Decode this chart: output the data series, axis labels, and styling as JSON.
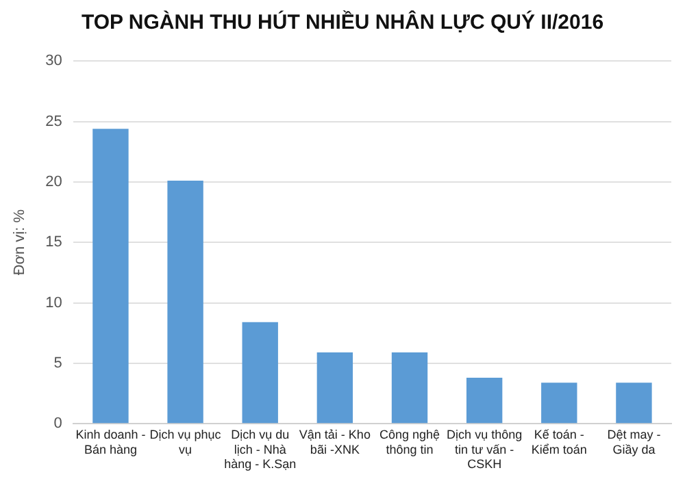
{
  "chart_data": {
    "type": "bar",
    "title": "TOP NGÀNH THU HÚT NHIỀU NHÂN LỰC QUÝ II/2016",
    "ylabel": "Đơn vị: %",
    "categories": [
      "Kinh doanh - Bán hàng",
      "Dịch vụ phục vụ",
      "Dịch vụ du lịch - Nhà hàng - K.Sạn",
      "Vận tải - Kho bãi -XNK",
      "Công nghệ thông tin",
      "Dịch vụ thông tin tư vấn - CSKH",
      "Kế toán - Kiểm toán",
      "Dệt may - Giầy da"
    ],
    "values": [
      24.4,
      20.1,
      8.4,
      5.9,
      5.9,
      3.8,
      3.4,
      3.4
    ],
    "color": "#5b9bd5",
    "ylim": [
      0,
      30
    ],
    "yticks": [
      0,
      5,
      10,
      15,
      20,
      25,
      30
    ],
    "grid": "y",
    "legend": false
  }
}
